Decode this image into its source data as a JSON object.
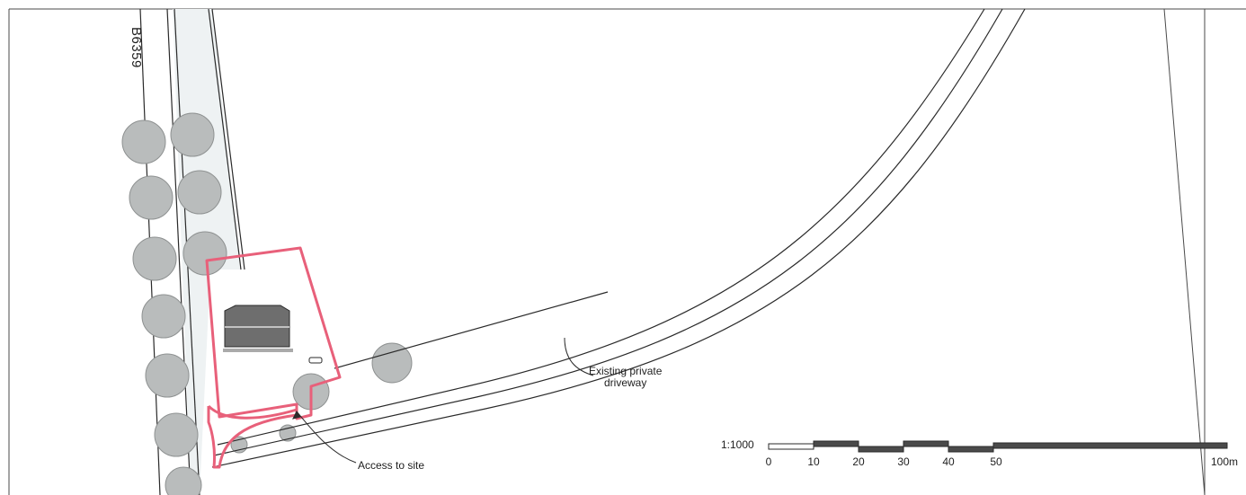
{
  "road": {
    "name": "B6359"
  },
  "annotations": {
    "driveway": {
      "line1": "Existing private",
      "line2": "driveway"
    },
    "access": "Access to site"
  },
  "scale_bar": {
    "ratio": "1:1000",
    "ticks": [
      "0",
      "10",
      "20",
      "30",
      "40",
      "50",
      "100m"
    ]
  },
  "colors": {
    "site_boundary": "#e8607a",
    "linework": "#2a2a2a",
    "road_fill": "#eef2f3",
    "building": "#6e6e6e",
    "tree": "#b9bcbc"
  }
}
